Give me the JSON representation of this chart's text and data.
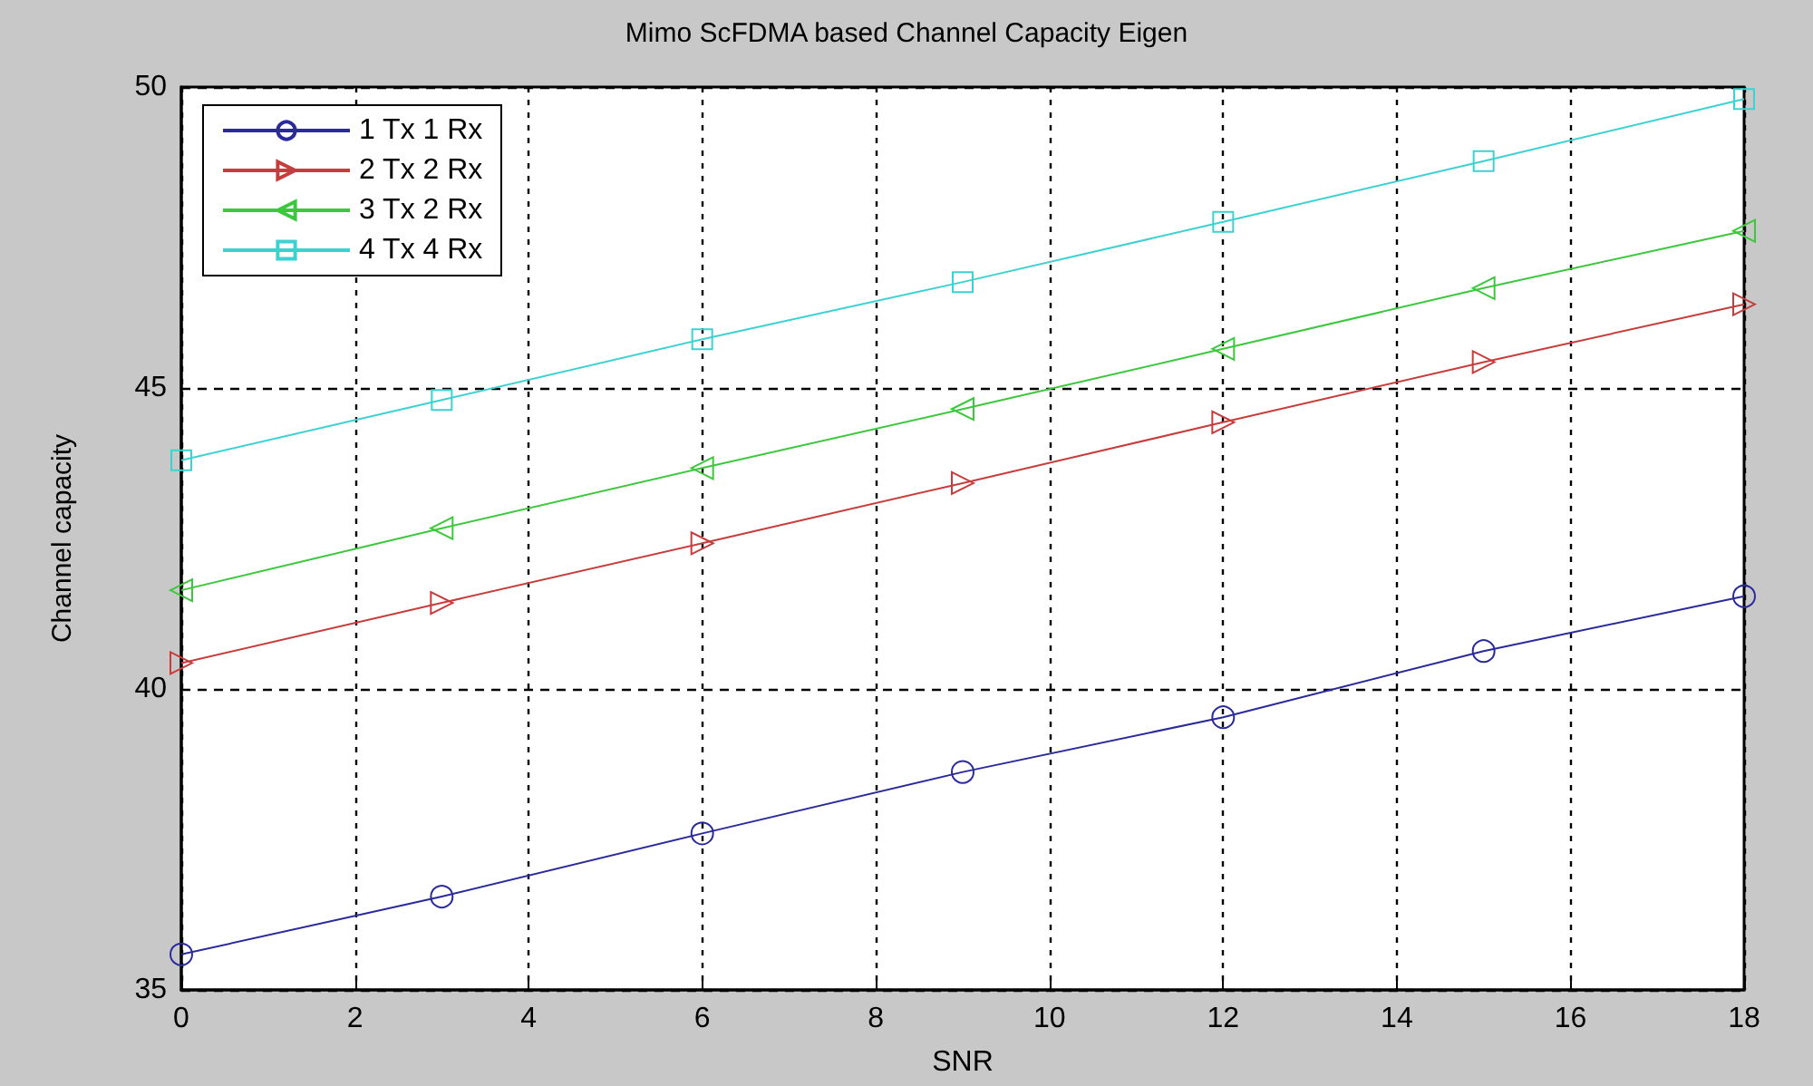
{
  "chart_data": {
    "type": "line",
    "title": "Mimo ScFDMA based Channel Capacity Eigen",
    "xlabel": "SNR",
    "ylabel": "Channel capacity",
    "x": [
      0,
      3,
      6,
      9,
      12,
      15,
      18
    ],
    "series": [
      {
        "name": "1 Tx 1 Rx",
        "color": "#2a2a9c",
        "marker": "circle",
        "values": [
          35.59,
          36.55,
          37.6,
          38.62,
          39.53,
          40.63,
          41.54
        ]
      },
      {
        "name": "2 Tx 2 Rx",
        "color": "#c83c3c",
        "marker": "triangle-right",
        "values": [
          40.43,
          41.43,
          42.42,
          43.42,
          44.43,
          45.43,
          46.39
        ]
      },
      {
        "name": "3 Tx 2 Rx",
        "color": "#3cc83c",
        "marker": "triangle-left",
        "values": [
          41.64,
          42.67,
          43.67,
          44.65,
          45.65,
          46.66,
          47.61
        ]
      },
      {
        "name": "4 Tx 4 Rx",
        "color": "#3cd2d2",
        "marker": "square",
        "values": [
          43.8,
          44.8,
          45.81,
          46.76,
          47.76,
          48.77,
          49.8
        ]
      }
    ],
    "xlim": [
      0,
      18
    ],
    "xticks": [
      0,
      2,
      4,
      6,
      8,
      10,
      12,
      14,
      16,
      18
    ],
    "ylim": [
      35,
      50
    ],
    "yticks": [
      35,
      40,
      45,
      50
    ],
    "grid": true,
    "legend": "top left",
    "line_style": "solid"
  }
}
